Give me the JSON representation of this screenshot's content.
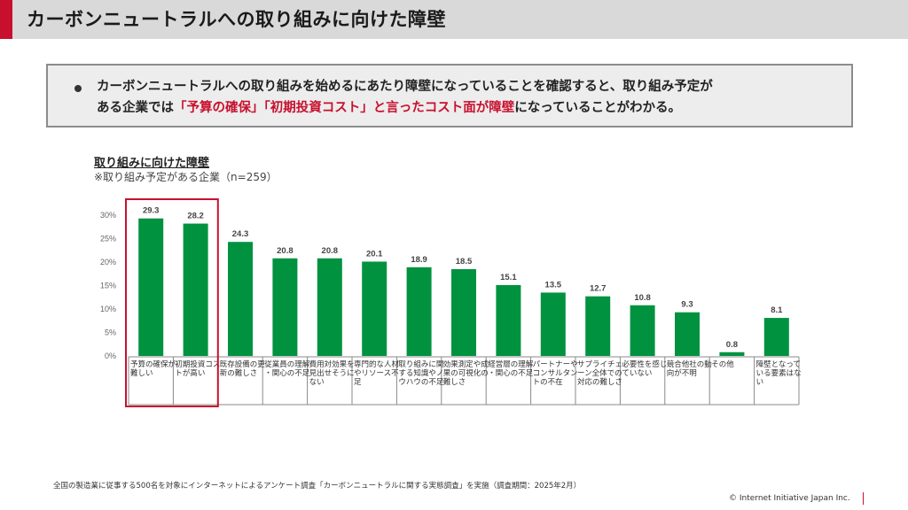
{
  "header": {
    "title": "カーボンニュートラルへの取り組みに向けた障壁"
  },
  "summary": {
    "line1": "カーボンニュートラルへの取り組みを始めるにあたり障壁になっていることを確認すると、取り組み予定が",
    "line2_prefix": "ある企業では",
    "line2_highlight": "「予算の確保」「初期投資コスト」と言ったコスト面が障壁",
    "line2_suffix": "になっていることがわかる。"
  },
  "chart_data": {
    "type": "bar",
    "title": "取り組みに向けた障壁",
    "subtitle": "※取り組み予定がある企業（n=259）",
    "ylim": [
      0,
      30
    ],
    "yticks": [
      "0%",
      "5%",
      "10%",
      "15%",
      "20%",
      "25%",
      "30%"
    ],
    "categories": [
      "予算の確保が難しい",
      "初期投資コストが高い",
      "既存設備の更新の難しさ",
      "従業員の理解・関心の不足",
      "費用対効果を見出せそうにない",
      "専門的な人材やリソース不足",
      "取り組みに関する知識やノウハウの不足",
      "効果測定や成果の可視化の難しさ",
      "経営層の理解・関心の不足",
      "パートナーやコンサルタントの不在",
      "サプライチェーン全体での対応の難しさ",
      "必要性を感じていない",
      "競合他社の動向が不明",
      "その他",
      "障壁となっている要素はない"
    ],
    "values": [
      29.3,
      28.2,
      24.3,
      20.8,
      20.8,
      20.1,
      18.9,
      18.5,
      15.1,
      13.5,
      12.7,
      10.8,
      9.3,
      0.8,
      8.1
    ],
    "value_labels": [
      "29.3",
      "28.2",
      "24.3",
      "20.8",
      "20.8",
      "20.1",
      "18.9",
      "18.5",
      "15.1",
      "13.5",
      "12.7",
      "10.8",
      "9.3",
      "0.8",
      "8.1"
    ],
    "bar_color": "#00923f",
    "highlight_color": "#c8102e",
    "highlight_categories": [
      0,
      1
    ],
    "grid": false
  },
  "footer": {
    "note": "全国の製造業に従事する500名を対象にインターネットによるアンケート調査「カーボンニュートラルに関する実態調査」を実施（調査期間：2025年2月）",
    "copyright": "© Internet Initiative Japan Inc."
  }
}
